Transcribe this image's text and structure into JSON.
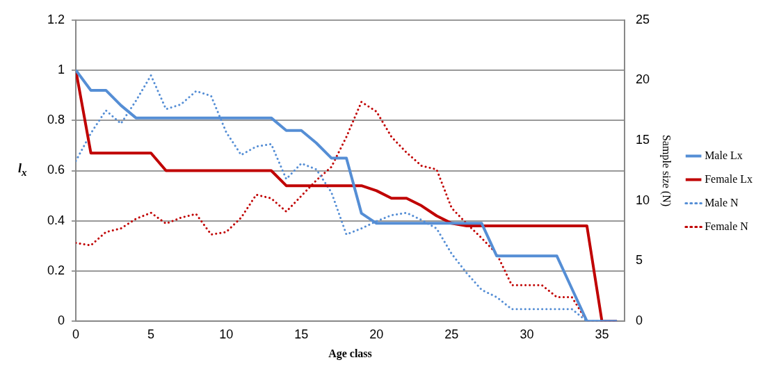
{
  "chart_data": {
    "type": "line",
    "xlabel": "Age class",
    "ylabel": "l$_{x}$",
    "y2label": "Sample size (N)",
    "x": [
      0,
      1,
      2,
      3,
      4,
      5,
      6,
      7,
      8,
      9,
      10,
      11,
      12,
      13,
      14,
      15,
      16,
      17,
      18,
      19,
      20,
      21,
      22,
      23,
      24,
      25,
      26,
      27,
      28,
      29,
      30,
      31,
      32,
      33,
      34,
      35,
      36
    ],
    "xlim": [
      0,
      36.5
    ],
    "xticks": [
      0,
      5,
      10,
      15,
      20,
      25,
      30,
      35
    ],
    "ylim": [
      0,
      1.2
    ],
    "yticks": [
      0,
      0.2,
      0.4,
      0.6,
      0.8,
      1,
      1.2
    ],
    "y2lim": [
      0,
      25
    ],
    "y2ticks": [
      0,
      5,
      10,
      15,
      20,
      25
    ],
    "grid": "y",
    "legend": "right",
    "marker": "none",
    "series": [
      {
        "name": "Male Lx",
        "color": "#558ed5",
        "line_style": "solid",
        "values": [
          1,
          0.92,
          0.92,
          0.86,
          0.81,
          0.81,
          0.81,
          0.81,
          0.81,
          0.81,
          0.81,
          0.81,
          0.81,
          0.81,
          0.76,
          0.76,
          0.71,
          0.65,
          0.65,
          0.43,
          0.39,
          0.39,
          0.39,
          0.39,
          0.39,
          0.39,
          0.39,
          0.39,
          0.26,
          0.26,
          0.26,
          0.26,
          0.26,
          0.13,
          0,
          0,
          0
        ]
      },
      {
        "name": "Female Lx",
        "color": "#c00000",
        "line_style": "solid",
        "values": [
          1,
          0.67,
          0.67,
          0.67,
          0.67,
          0.67,
          0.6,
          0.6,
          0.6,
          0.6,
          0.6,
          0.6,
          0.6,
          0.6,
          0.54,
          0.54,
          0.54,
          0.54,
          0.54,
          0.54,
          0.52,
          0.49,
          0.49,
          0.46,
          0.42,
          0.39,
          0.38,
          0.38,
          0.38,
          0.38,
          0.38,
          0.38,
          0.38,
          0.38,
          0.38,
          0,
          0
        ]
      },
      {
        "name": "Male N",
        "color": "#558ed5",
        "line_style": "dotted",
        "axis": "y2",
        "values": [
          13.3,
          15.6,
          17.5,
          16.4,
          18.3,
          20.4,
          17.6,
          18.0,
          19.1,
          18.7,
          15.7,
          13.8,
          14.5,
          14.7,
          11.8,
          13.1,
          12.6,
          10.7,
          7.2,
          7.7,
          8.3,
          8.8,
          9.0,
          8.4,
          7.7,
          5.6,
          4.0,
          2.6,
          2.0,
          1,
          1,
          1,
          1,
          1,
          0,
          0,
          0
        ]
      },
      {
        "name": "Female N",
        "color": "#c00000",
        "line_style": "dotted",
        "axis": "y2",
        "values": [
          6.5,
          6.3,
          7.4,
          7.7,
          8.5,
          9.0,
          8.1,
          8.6,
          8.9,
          7.2,
          7.4,
          8.6,
          10.5,
          10.2,
          9.1,
          10.4,
          11.7,
          12.8,
          15.3,
          18.2,
          17.4,
          15.3,
          14.0,
          12.9,
          12.6,
          9.4,
          8.1,
          6.9,
          5.6,
          3,
          3,
          3,
          2,
          2,
          0,
          0,
          0
        ]
      }
    ]
  }
}
